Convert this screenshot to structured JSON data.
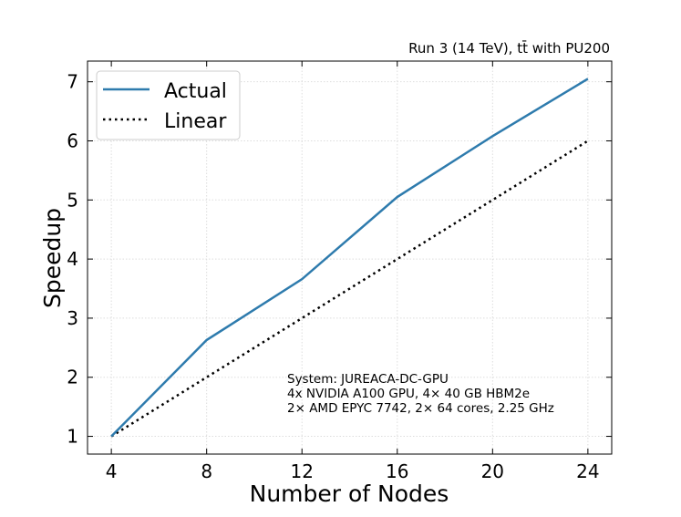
{
  "chart_data": {
    "type": "line",
    "title": "Run 3 (14 TeV), tt̄ with PU200",
    "xlabel": "Number of Nodes",
    "ylabel": "Speedup",
    "x": [
      4,
      8,
      12,
      16,
      20,
      24
    ],
    "series": [
      {
        "name": "Actual",
        "values": [
          1.0,
          2.63,
          3.66,
          5.05,
          6.08,
          7.05
        ],
        "color": "#2e7bad",
        "style": "solid"
      },
      {
        "name": "Linear",
        "values": [
          1,
          2,
          3,
          4,
          5,
          6
        ],
        "color": "#000000",
        "style": "dotted"
      }
    ],
    "xticks": [
      "4",
      "8",
      "12",
      "16",
      "20",
      "24"
    ],
    "yticks": [
      "1",
      "2",
      "3",
      "4",
      "5",
      "6",
      "7"
    ],
    "xlim": [
      3,
      25
    ],
    "ylim": [
      0.7,
      7.35
    ],
    "grid": true,
    "legend_position": "top-left",
    "annotation": [
      "System: JUREACA-DC-GPU",
      "4x NVIDIA A100 GPU, 4× 40 GB HBM2e",
      "2× AMD EPYC 7742, 2× 64 cores, 2.25 GHz"
    ]
  }
}
